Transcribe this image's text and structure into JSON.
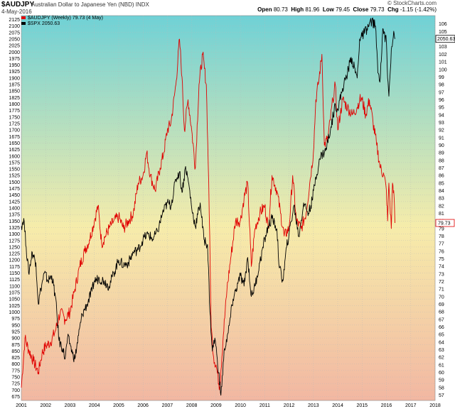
{
  "header": {
    "symbol": "$AUDJPY",
    "description": "Australian Dollar to Japanese Yen (NBD)",
    "exchange": "INDX",
    "date": "4-May-2016",
    "open_label": "Open",
    "open": "80.73",
    "high_label": "High",
    "high": "81.96",
    "low_label": "Low",
    "low": "79.45",
    "close_label": "Close",
    "close": "79.73",
    "chg_label": "Chg",
    "chg": "-1.15 (-1.42%)",
    "watermark": "© StockCharts.com"
  },
  "legend": {
    "primary": "$AUDJPY (Weekly) 79.73 (4 May)",
    "secondary": "$SPX 2050.63"
  },
  "colors": {
    "audjpy": "#e00000",
    "spx": "#000000",
    "bg_top": "#6fd1d6",
    "bg_mid": "#f6ecaa",
    "bg_bottom": "#f2b7a2",
    "last_audjpy_badge": "#e00000",
    "last_spx_badge": "#000000"
  },
  "chart_data": {
    "type": "line",
    "x_ticks": [
      "2001",
      "2002",
      "2003",
      "2004",
      "2005",
      "2006",
      "2007",
      "2008",
      "2009",
      "2010",
      "2011",
      "2012",
      "2013",
      "2014",
      "2015",
      "2016",
      "2017",
      "2018"
    ],
    "left_axis": {
      "label": "",
      "range": [
        660,
        2140
      ],
      "ticks": [
        675,
        700,
        725,
        750,
        775,
        800,
        825,
        850,
        875,
        900,
        925,
        950,
        975,
        1000,
        1025,
        1050,
        1075,
        1100,
        1125,
        1150,
        1175,
        1200,
        1225,
        1250,
        1275,
        1300,
        1325,
        1350,
        1375,
        1400,
        1425,
        1450,
        1475,
        1500,
        1525,
        1550,
        1575,
        1600,
        1625,
        1650,
        1675,
        1700,
        1725,
        1750,
        1775,
        1800,
        1825,
        1850,
        1875,
        1900,
        1925,
        1950,
        1975,
        2000,
        2025,
        2050,
        2075,
        2100,
        2125
      ]
    },
    "right_axis": {
      "label": "",
      "range": [
        56.3,
        107.1
      ],
      "ticks": [
        57,
        58,
        59,
        60,
        61,
        62,
        63,
        64,
        65,
        66,
        67,
        68,
        69,
        70,
        71,
        72,
        73,
        74,
        75,
        76,
        77,
        78,
        79,
        80,
        81,
        82,
        83,
        84,
        85,
        86,
        87,
        88,
        89,
        90,
        91,
        92,
        93,
        94,
        95,
        96,
        97,
        98,
        99,
        100,
        101,
        102,
        103,
        104,
        105,
        106
      ]
    },
    "series": [
      {
        "name": "$AUDJPY (Weekly) 79.73 (4 May)",
        "axis": "right",
        "last_value": "79.73",
        "points": [
          [
            2001.0,
            58.0
          ],
          [
            2001.15,
            64.5
          ],
          [
            2001.3,
            63.0
          ],
          [
            2001.5,
            61.5
          ],
          [
            2001.7,
            60.0
          ],
          [
            2001.85,
            62.5
          ],
          [
            2002.0,
            63.5
          ],
          [
            2002.2,
            64.0
          ],
          [
            2002.4,
            65.5
          ],
          [
            2002.6,
            68.0
          ],
          [
            2002.8,
            67.0
          ],
          [
            2003.0,
            68.0
          ],
          [
            2003.2,
            71.0
          ],
          [
            2003.4,
            74.0
          ],
          [
            2003.6,
            76.0
          ],
          [
            2003.8,
            77.5
          ],
          [
            2004.0,
            80.0
          ],
          [
            2004.15,
            82.0
          ],
          [
            2004.3,
            77.0
          ],
          [
            2004.45,
            78.0
          ],
          [
            2004.6,
            79.0
          ],
          [
            2004.8,
            80.0
          ],
          [
            2005.0,
            80.5
          ],
          [
            2005.2,
            79.0
          ],
          [
            2005.4,
            80.0
          ],
          [
            2005.6,
            81.0
          ],
          [
            2005.8,
            85.0
          ],
          [
            2006.0,
            86.0
          ],
          [
            2006.15,
            89.0
          ],
          [
            2006.3,
            86.0
          ],
          [
            2006.5,
            84.0
          ],
          [
            2006.7,
            87.0
          ],
          [
            2006.85,
            89.0
          ],
          [
            2007.0,
            92.0
          ],
          [
            2007.15,
            93.0
          ],
          [
            2007.35,
            98.0
          ],
          [
            2007.5,
            104.0
          ],
          [
            2007.6,
            99.0
          ],
          [
            2007.7,
            92.0
          ],
          [
            2007.85,
            96.0
          ],
          [
            2008.0,
            92.0
          ],
          [
            2008.15,
            87.0
          ],
          [
            2008.3,
            98.0
          ],
          [
            2008.45,
            102.0
          ],
          [
            2008.6,
            98.0
          ],
          [
            2008.7,
            85.0
          ],
          [
            2008.8,
            66.0
          ],
          [
            2008.9,
            62.0
          ],
          [
            2009.0,
            61.0
          ],
          [
            2009.15,
            58.0
          ],
          [
            2009.3,
            65.0
          ],
          [
            2009.45,
            71.0
          ],
          [
            2009.6,
            75.0
          ],
          [
            2009.8,
            80.0
          ],
          [
            2010.0,
            80.0
          ],
          [
            2010.15,
            83.0
          ],
          [
            2010.3,
            85.0
          ],
          [
            2010.45,
            74.0
          ],
          [
            2010.6,
            79.0
          ],
          [
            2010.8,
            81.0
          ],
          [
            2011.0,
            82.0
          ],
          [
            2011.15,
            79.0
          ],
          [
            2011.3,
            86.0
          ],
          [
            2011.5,
            84.0
          ],
          [
            2011.65,
            81.0
          ],
          [
            2011.8,
            78.0
          ],
          [
            2012.0,
            79.0
          ],
          [
            2012.15,
            86.0
          ],
          [
            2012.3,
            80.0
          ],
          [
            2012.5,
            79.0
          ],
          [
            2012.7,
            81.0
          ],
          [
            2012.85,
            85.0
          ],
          [
            2013.0,
            89.0
          ],
          [
            2013.1,
            96.0
          ],
          [
            2013.2,
            98.0
          ],
          [
            2013.35,
            102.0
          ],
          [
            2013.45,
            90.0
          ],
          [
            2013.6,
            91.0
          ],
          [
            2013.8,
            96.0
          ],
          [
            2013.9,
            98.0
          ],
          [
            2014.0,
            92.0
          ],
          [
            2014.2,
            96.0
          ],
          [
            2014.4,
            95.0
          ],
          [
            2014.6,
            94.0
          ],
          [
            2014.8,
            95.0
          ],
          [
            2014.9,
            96.0
          ],
          [
            2015.0,
            96.0
          ],
          [
            2015.15,
            94.0
          ],
          [
            2015.3,
            96.0
          ],
          [
            2015.45,
            93.0
          ],
          [
            2015.6,
            90.0
          ],
          [
            2015.75,
            87.0
          ],
          [
            2015.9,
            86.0
          ],
          [
            2016.0,
            84.0
          ],
          [
            2016.05,
            80.0
          ],
          [
            2016.1,
            85.0
          ],
          [
            2016.2,
            79.0
          ],
          [
            2016.25,
            85.0
          ],
          [
            2016.3,
            84.0
          ],
          [
            2016.35,
            79.73
          ]
        ]
      },
      {
        "name": "$SPX 2050.63",
        "axis": "left",
        "last_value": "2050.63",
        "points": [
          [
            2001.0,
            1330.0
          ],
          [
            2001.1,
            1360.0
          ],
          [
            2001.2,
            1250.0
          ],
          [
            2001.3,
            1150.0
          ],
          [
            2001.45,
            1230.0
          ],
          [
            2001.6,
            1190.0
          ],
          [
            2001.7,
            1030.0
          ],
          [
            2001.8,
            1090.0
          ],
          [
            2001.95,
            1150.0
          ],
          [
            2002.1,
            1120.0
          ],
          [
            2002.25,
            1140.0
          ],
          [
            2002.4,
            1060.0
          ],
          [
            2002.55,
            890.0
          ],
          [
            2002.7,
            860.0
          ],
          [
            2002.8,
            820.0
          ],
          [
            2002.9,
            900.0
          ],
          [
            2003.0,
            880.0
          ],
          [
            2003.1,
            840.0
          ],
          [
            2003.2,
            820.0
          ],
          [
            2003.35,
            910.0
          ],
          [
            2003.5,
            990.0
          ],
          [
            2003.7,
            1030.0
          ],
          [
            2003.9,
            1080.0
          ],
          [
            2004.0,
            1120.0
          ],
          [
            2004.2,
            1130.0
          ],
          [
            2004.4,
            1120.0
          ],
          [
            2004.6,
            1100.0
          ],
          [
            2004.8,
            1150.0
          ],
          [
            2005.0,
            1200.0
          ],
          [
            2005.2,
            1180.0
          ],
          [
            2005.4,
            1190.0
          ],
          [
            2005.6,
            1230.0
          ],
          [
            2005.8,
            1240.0
          ],
          [
            2006.0,
            1280.0
          ],
          [
            2006.2,
            1300.0
          ],
          [
            2006.4,
            1280.0
          ],
          [
            2006.6,
            1310.0
          ],
          [
            2006.8,
            1380.0
          ],
          [
            2007.0,
            1420.0
          ],
          [
            2007.15,
            1410.0
          ],
          [
            2007.35,
            1510.0
          ],
          [
            2007.5,
            1540.0
          ],
          [
            2007.6,
            1460.0
          ],
          [
            2007.75,
            1560.0
          ],
          [
            2007.9,
            1480.0
          ],
          [
            2008.0,
            1400.0
          ],
          [
            2008.15,
            1330.0
          ],
          [
            2008.35,
            1420.0
          ],
          [
            2008.5,
            1280.0
          ],
          [
            2008.65,
            1260.0
          ],
          [
            2008.75,
            1000.0
          ],
          [
            2008.85,
            850.0
          ],
          [
            2008.95,
            900.0
          ],
          [
            2009.05,
            820.0
          ],
          [
            2009.2,
            680.0
          ],
          [
            2009.35,
            860.0
          ],
          [
            2009.5,
            920.0
          ],
          [
            2009.7,
            1050.0
          ],
          [
            2009.9,
            1110.0
          ],
          [
            2010.0,
            1140.0
          ],
          [
            2010.15,
            1100.0
          ],
          [
            2010.3,
            1210.0
          ],
          [
            2010.45,
            1060.0
          ],
          [
            2010.6,
            1100.0
          ],
          [
            2010.8,
            1190.0
          ],
          [
            2011.0,
            1280.0
          ],
          [
            2011.15,
            1330.0
          ],
          [
            2011.3,
            1360.0
          ],
          [
            2011.5,
            1320.0
          ],
          [
            2011.6,
            1170.0
          ],
          [
            2011.75,
            1120.0
          ],
          [
            2011.9,
            1250.0
          ],
          [
            2012.0,
            1300.0
          ],
          [
            2012.2,
            1410.0
          ],
          [
            2012.4,
            1290.0
          ],
          [
            2012.6,
            1420.0
          ],
          [
            2012.8,
            1380.0
          ],
          [
            2012.95,
            1430.0
          ],
          [
            2013.1,
            1520.0
          ],
          [
            2013.3,
            1600.0
          ],
          [
            2013.5,
            1620.0
          ],
          [
            2013.7,
            1700.0
          ],
          [
            2013.9,
            1800.0
          ],
          [
            2014.0,
            1780.0
          ],
          [
            2014.2,
            1860.0
          ],
          [
            2014.4,
            1920.0
          ],
          [
            2014.55,
            1980.0
          ],
          [
            2014.8,
            1900.0
          ],
          [
            2014.9,
            2050.0
          ],
          [
            2015.0,
            2060.0
          ],
          [
            2015.2,
            2090.0
          ],
          [
            2015.4,
            2120.0
          ],
          [
            2015.55,
            2100.0
          ],
          [
            2015.65,
            1920.0
          ],
          [
            2015.75,
            1900.0
          ],
          [
            2015.85,
            2090.0
          ],
          [
            2016.0,
            2040.0
          ],
          [
            2016.05,
            1900.0
          ],
          [
            2016.1,
            1830.0
          ],
          [
            2016.2,
            2010.0
          ],
          [
            2016.3,
            2080.0
          ],
          [
            2016.35,
            2050.63
          ]
        ]
      }
    ]
  }
}
